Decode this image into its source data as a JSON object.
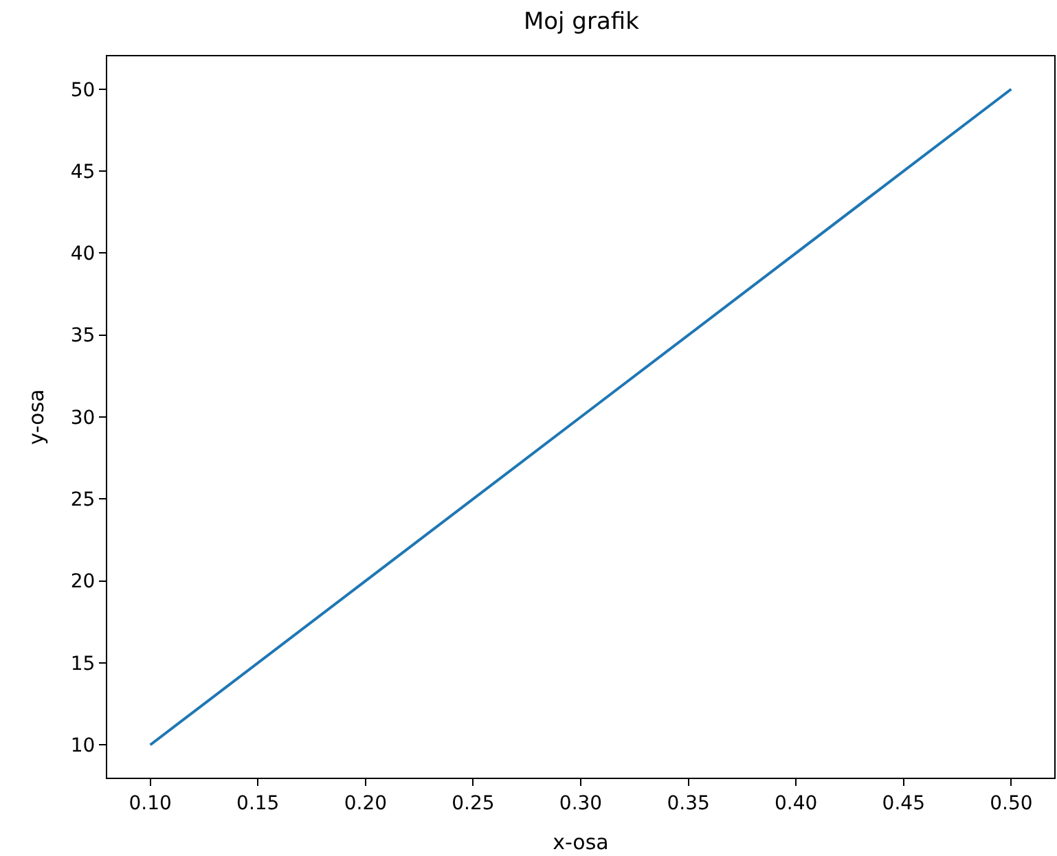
{
  "chart_data": {
    "type": "line",
    "title": "Moj grafik",
    "xlabel": "x-osa",
    "ylabel": "y-osa",
    "x": [
      0.1,
      0.2,
      0.3,
      0.4,
      0.5
    ],
    "series": [
      {
        "color": "#1f77b4",
        "values": [
          10,
          20,
          30,
          40,
          50
        ]
      }
    ],
    "xlim": [
      0.08,
      0.52
    ],
    "ylim": [
      8,
      52
    ],
    "xticks": [
      {
        "value": 0.1,
        "label": "0.10"
      },
      {
        "value": 0.15,
        "label": "0.15"
      },
      {
        "value": 0.2,
        "label": "0.20"
      },
      {
        "value": 0.25,
        "label": "0.25"
      },
      {
        "value": 0.3,
        "label": "0.30"
      },
      {
        "value": 0.35,
        "label": "0.35"
      },
      {
        "value": 0.4,
        "label": "0.40"
      },
      {
        "value": 0.45,
        "label": "0.45"
      },
      {
        "value": 0.5,
        "label": "0.50"
      }
    ],
    "yticks": [
      10,
      15,
      20,
      25,
      30,
      35,
      40,
      45,
      50
    ],
    "marker": "none",
    "line_style": "solid"
  }
}
